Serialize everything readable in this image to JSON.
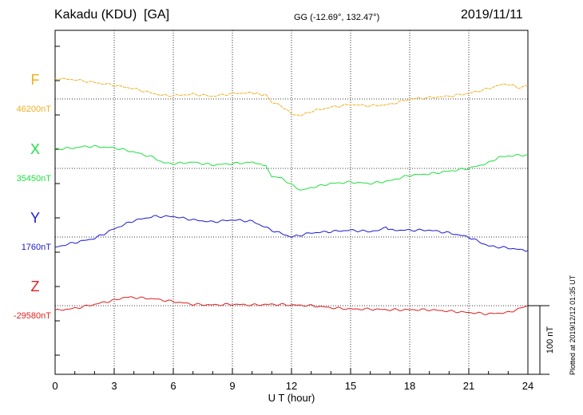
{
  "header": {
    "station": "Kakadu (KDU)  [GA]",
    "coords": "GG (-12.69°, 132.47°)",
    "date": "2019/11/11"
  },
  "plotted_note": "Plotted at 2019/12/12 01:35 UT",
  "chart_data": {
    "type": "line",
    "title": "Kakadu (KDU)  [GA]",
    "xlabel": "U T (hour)",
    "x_ticks": [
      "0",
      "3",
      "6",
      "9",
      "12",
      "15",
      "18",
      "21",
      "24"
    ],
    "xlim": [
      0,
      24
    ],
    "grid": true,
    "scale_bar_label": "100 nT",
    "scale_bar_nT": 100,
    "series": [
      {
        "name": "F",
        "baseline_label": "46200nT",
        "baseline_nT": 46200,
        "color": "#f0b020",
        "x": [
          0,
          1,
          2,
          3,
          4,
          5,
          5.5,
          6,
          7,
          8,
          9,
          10,
          10.7,
          11,
          11.5,
          12,
          12.5,
          13,
          14,
          15,
          16,
          17,
          18,
          19,
          20,
          21,
          22,
          22.5,
          23,
          23.5,
          24
        ],
        "y": [
          30,
          28,
          24,
          20,
          15,
          8,
          5,
          5,
          7,
          4,
          8,
          9,
          5,
          -5,
          -10,
          -22,
          -24,
          -18,
          -12,
          -8,
          -10,
          -8,
          0,
          2,
          4,
          8,
          15,
          20,
          22,
          16,
          20
        ]
      },
      {
        "name": "X",
        "baseline_label": "35450nT",
        "baseline_nT": 35450,
        "color": "#20e040",
        "x": [
          0,
          1,
          1.5,
          2,
          3,
          4,
          5,
          5.5,
          6,
          7,
          8,
          9,
          10,
          10.7,
          11,
          11.5,
          12,
          12.5,
          13,
          14,
          15,
          16,
          17,
          18,
          19,
          20,
          21,
          22,
          22.5,
          23,
          24
        ],
        "y": [
          28,
          30,
          32,
          32,
          30,
          24,
          16,
          8,
          7,
          9,
          5,
          7,
          9,
          4,
          -12,
          -14,
          -24,
          -32,
          -28,
          -22,
          -20,
          -22,
          -18,
          -10,
          -8,
          -4,
          0,
          8,
          16,
          18,
          20
        ]
      },
      {
        "name": "Y",
        "baseline_label": "1760nT",
        "baseline_nT": 1760,
        "color": "#1a1ad0",
        "x": [
          0,
          1,
          2,
          3,
          4,
          5,
          5.5,
          6,
          7,
          8,
          9,
          10,
          11,
          12,
          12.5,
          13,
          14,
          15,
          16,
          16.8,
          17,
          18,
          19,
          20,
          21,
          22,
          23,
          24
        ],
        "y": [
          -15,
          -8,
          -2,
          12,
          24,
          30,
          30,
          30,
          25,
          22,
          25,
          23,
          10,
          0,
          3,
          6,
          8,
          10,
          8,
          14,
          10,
          10,
          10,
          6,
          0,
          -13,
          -16,
          -20
        ]
      },
      {
        "name": "Z",
        "baseline_label": "-29580nT",
        "baseline_nT": -29580,
        "color": "#e02020",
        "x": [
          0,
          1,
          2,
          3,
          3.5,
          4,
          5,
          6,
          7,
          8,
          9,
          10,
          11,
          12,
          13,
          14,
          15,
          16,
          17,
          18,
          19,
          20,
          21,
          22,
          23,
          24
        ],
        "y": [
          -7,
          -4,
          2,
          8,
          12,
          12,
          10,
          6,
          2,
          1,
          2,
          1,
          2,
          1,
          0,
          -3,
          -5,
          -5,
          -6,
          -6,
          -6,
          -8,
          -10,
          -12,
          -10,
          0
        ]
      }
    ]
  }
}
